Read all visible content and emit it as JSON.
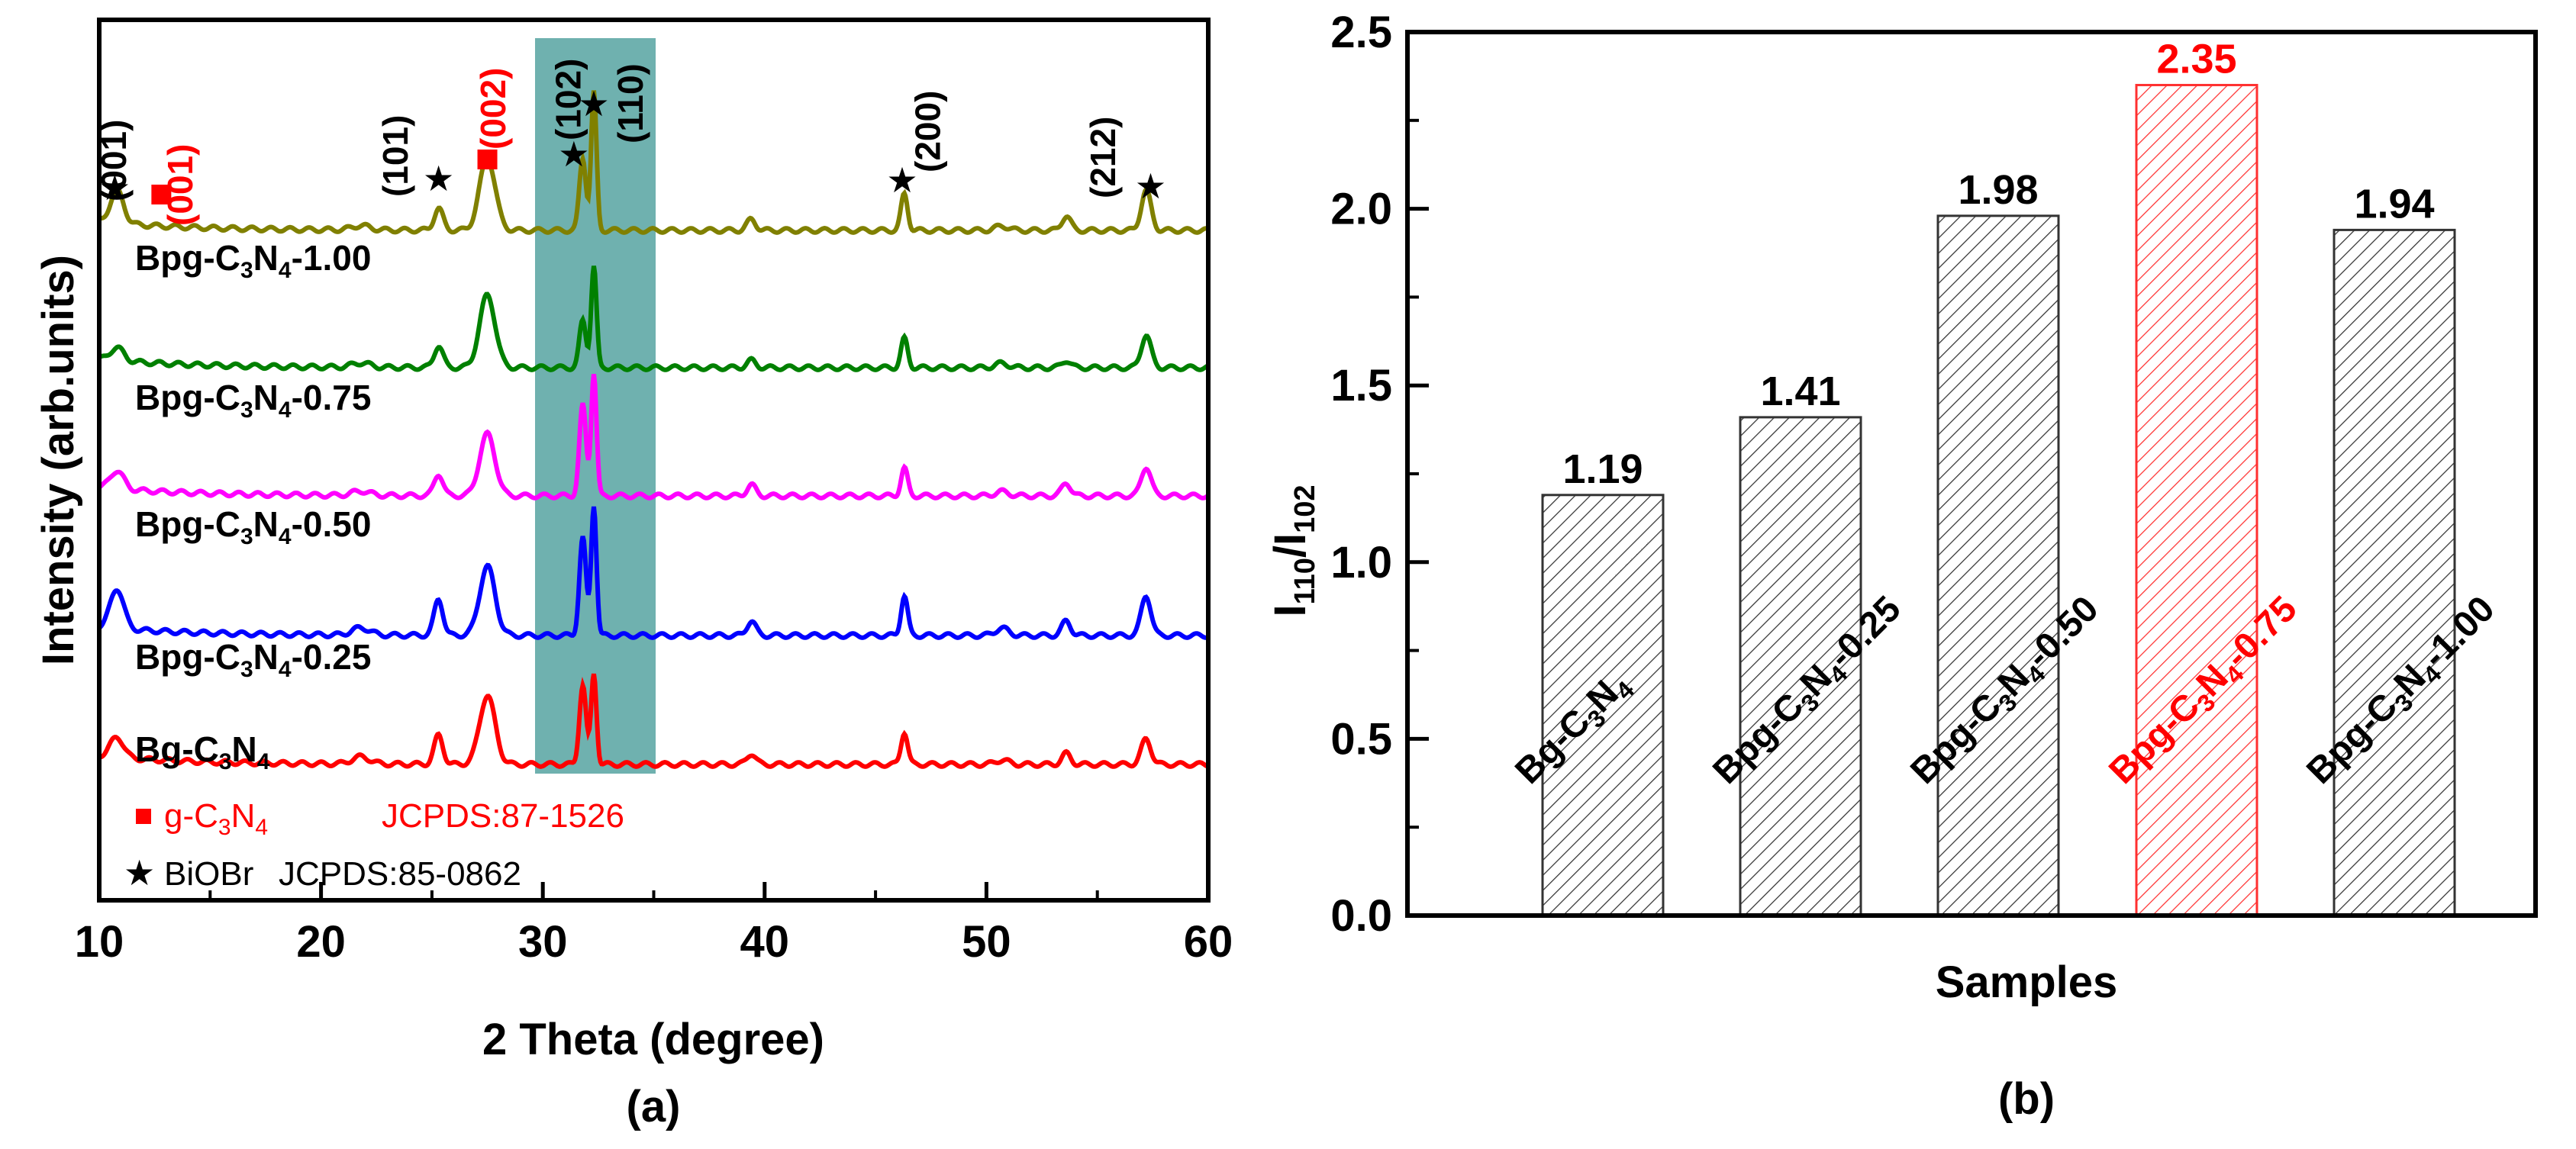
{
  "figure": {
    "panel_a_label": "(a)",
    "panel_b_label": "(b)"
  },
  "chart_data": [
    {
      "type": "line",
      "title": "",
      "xlabel": "2 Theta (degree)",
      "ylabel": "Intensity (arb.units)",
      "xlim": [
        10,
        60
      ],
      "xticks": [
        10,
        20,
        30,
        40,
        50,
        60
      ],
      "highlight_range": [
        29.5,
        35.0
      ],
      "peaks": [
        10.8,
        12.9,
        21.8,
        25.3,
        27.5,
        31.8,
        32.3,
        39.4,
        46.3,
        50.7,
        53.6,
        57.2
      ],
      "series": [
        {
          "name": "Bg-C3N4",
          "color": "#ff0000",
          "offset": 0,
          "heights": [
            0.28,
            0,
            0.1,
            0.4,
            0.95,
            1.1,
            1.25,
            0.15,
            0.45,
            0.06,
            0.15,
            0.35
          ]
        },
        {
          "name": "Bpg-C3N4-0.25",
          "color": "#0000ff",
          "offset": 1,
          "heights": [
            0.55,
            0,
            0.1,
            0.5,
            0.95,
            1.35,
            1.8,
            0.2,
            0.55,
            0.1,
            0.2,
            0.55
          ]
        },
        {
          "name": "Bpg-C3N4-0.50",
          "color": "#ff00ff",
          "offset": 2,
          "heights": [
            0.25,
            0,
            0.06,
            0.3,
            0.85,
            1.25,
            1.7,
            0.15,
            0.38,
            0.06,
            0.18,
            0.4
          ]
        },
        {
          "name": "Bpg-C3N4-0.75",
          "color": "#008000",
          "offset": 3,
          "heights": [
            0.18,
            0,
            0.06,
            0.3,
            1.0,
            0.65,
            1.4,
            0.1,
            0.4,
            0.06,
            0.1,
            0.45
          ]
        },
        {
          "name": "Bpg-C3N4-1.00",
          "color": "#808000",
          "offset": 4,
          "heights": [
            0.45,
            0,
            0.06,
            0.3,
            1.0,
            1.0,
            1.9,
            0.15,
            0.5,
            0.06,
            0.2,
            0.55
          ]
        }
      ],
      "series_labels": [
        {
          "base": "Bg-C",
          "sub1": "3",
          "mid": "N",
          "sub2": "4",
          "tail": ""
        },
        {
          "base": "Bpg-C",
          "sub1": "3",
          "mid": "N",
          "sub2": "4",
          "tail": "-0.25"
        },
        {
          "base": "Bpg-C",
          "sub1": "3",
          "mid": "N",
          "sub2": "4",
          "tail": "-0.50"
        },
        {
          "base": "Bpg-C",
          "sub1": "3",
          "mid": "N",
          "sub2": "4",
          "tail": "-0.75"
        },
        {
          "base": "Bpg-C",
          "sub1": "3",
          "mid": "N",
          "sub2": "4",
          "tail": "-1.00"
        }
      ],
      "annotations": [
        {
          "text": "(001)",
          "color": "#000000",
          "x": 11.2,
          "marker": "star",
          "marker_x": 10.7
        },
        {
          "text": "(001)",
          "color": "#ff0000",
          "x": 14.2,
          "marker": "square",
          "marker_x": 12.8
        },
        {
          "text": "(101)",
          "color": "#000000",
          "x": 23.9,
          "marker": "star",
          "marker_x": 25.3
        },
        {
          "text": "(002)",
          "color": "#ff0000",
          "x": 28.3,
          "marker": "square",
          "marker_x": 27.5
        },
        {
          "text": "(102)",
          "color": "#000000",
          "x": 31.7,
          "marker": "star",
          "marker_x": 31.4
        },
        {
          "text": "(110)",
          "color": "#000000",
          "x": 34.5,
          "marker": "star",
          "marker_x": 32.3
        },
        {
          "text": "(200)",
          "color": "#000000",
          "x": 47.9,
          "marker": "star",
          "marker_x": 46.2
        },
        {
          "text": "(212)",
          "color": "#000000",
          "x": 55.8,
          "marker": "star",
          "marker_x": 57.4
        }
      ],
      "legend": [
        {
          "marker": "square",
          "color": "#ff0000",
          "name": "g-C",
          "sub1": "3",
          "mid": "N",
          "sub2": "4",
          "code": "JCPDS:87-1526"
        },
        {
          "marker": "star",
          "color": "#000000",
          "name": "BiOBr",
          "code": "JCPDS:85-0862"
        }
      ]
    },
    {
      "type": "bar",
      "title": "",
      "xlabel": "Samples",
      "ylabel": {
        "base": "I",
        "sub1": "110",
        "slash": "/I",
        "sub2": "102"
      },
      "ylim": [
        0.0,
        2.5
      ],
      "yticks": [
        "0.0",
        "0.5",
        "1.0",
        "1.5",
        "2.0",
        "2.5"
      ],
      "categories": [
        "Bg-C3N4",
        "Bpg-C3N4-0.25",
        "Bpg-C3N4-0.50",
        "Bpg-C3N4-0.75",
        "Bpg-C3N4-1.00"
      ],
      "values": [
        1.19,
        1.41,
        1.98,
        2.35,
        1.94
      ],
      "value_labels": [
        "1.19",
        "1.41",
        "1.98",
        "2.35",
        "1.94"
      ],
      "bar_colors": [
        "#000000",
        "#000000",
        "#000000",
        "#ff0000",
        "#000000"
      ],
      "bar_labels": [
        {
          "base": "Bg-C",
          "sub1": "3",
          "mid": "N",
          "sub2": "4",
          "tail": ""
        },
        {
          "base": "Bpg-C",
          "sub1": "3",
          "mid": "N",
          "sub2": "4",
          "tail": "-0.25"
        },
        {
          "base": "Bpg-C",
          "sub1": "3",
          "mid": "N",
          "sub2": "4",
          "tail": "-0.50"
        },
        {
          "base": "Bpg-C",
          "sub1": "3",
          "mid": "N",
          "sub2": "4",
          "tail": "-0.75"
        },
        {
          "base": "Bpg-C",
          "sub1": "3",
          "mid": "N",
          "sub2": "4",
          "tail": "-1.00"
        }
      ]
    }
  ]
}
